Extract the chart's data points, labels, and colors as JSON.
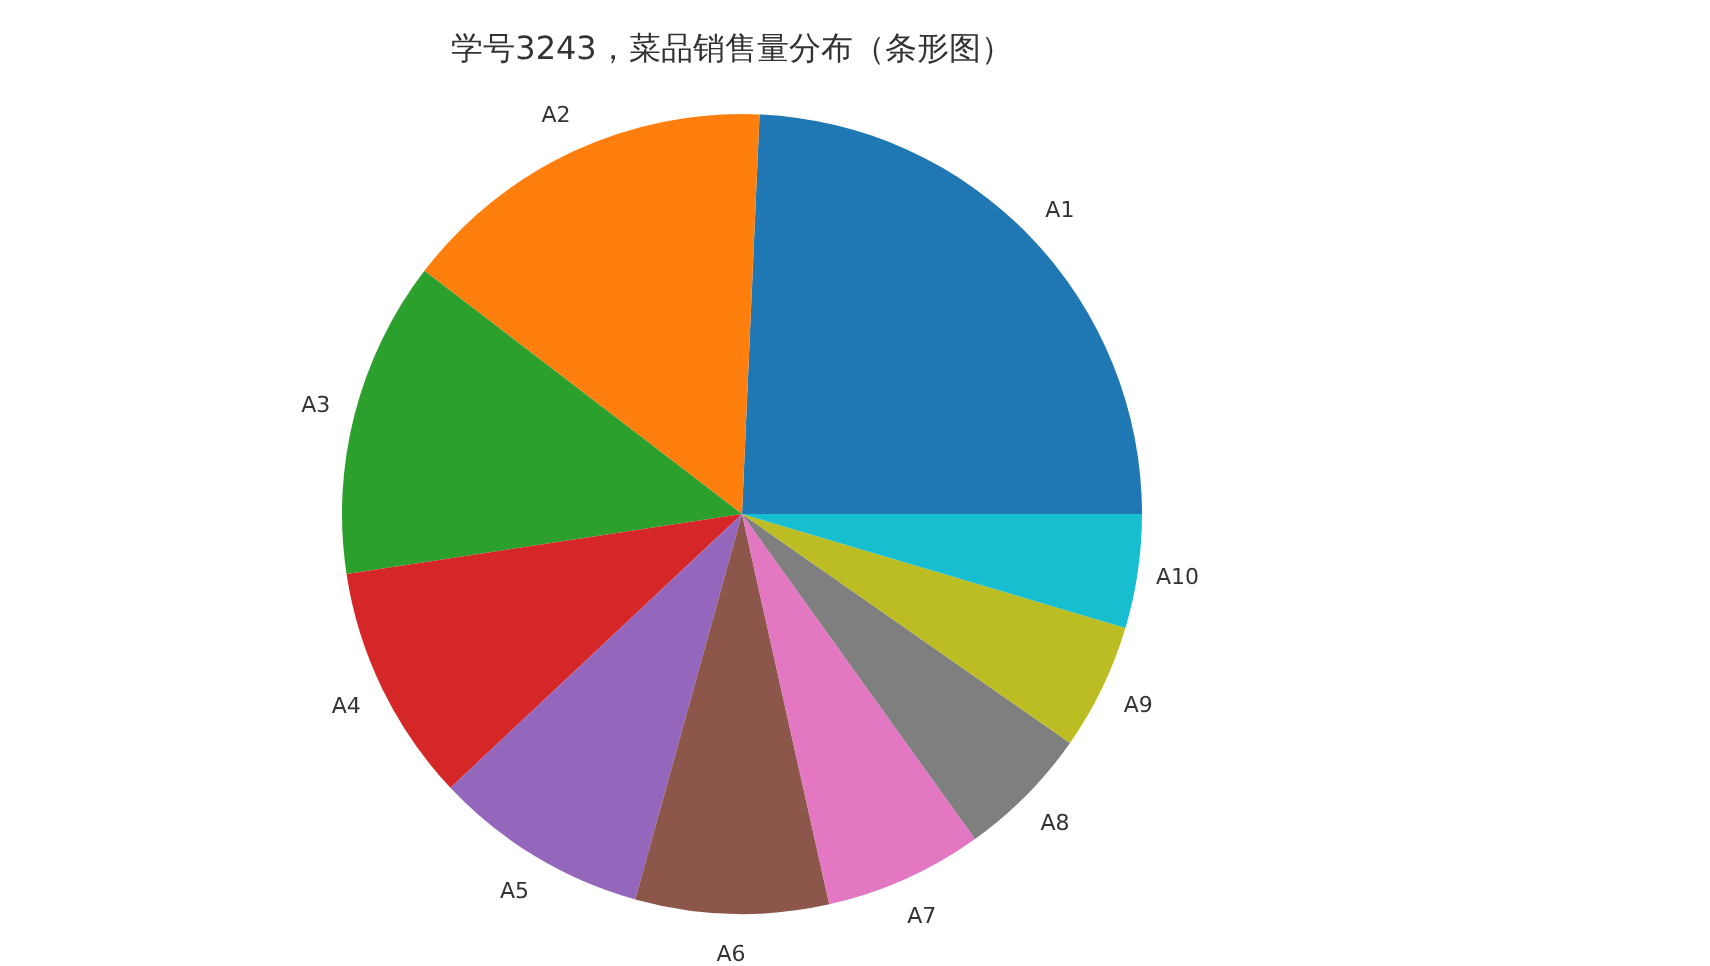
{
  "chart_data": {
    "type": "pie",
    "title": "学号3243，菜品销售量分布（条形图）",
    "categories": [
      "A1",
      "A2",
      "A3",
      "A4",
      "A5",
      "A6",
      "A7",
      "A8",
      "A9",
      "A10"
    ],
    "values": [
      24.3,
      15.3,
      12.8,
      9.6,
      8.7,
      7.8,
      6.4,
      5.4,
      5.1,
      4.6
    ],
    "colors": [
      "#1f77b4",
      "#ff7f0e",
      "#2ca02c",
      "#d62728",
      "#9467bd",
      "#8c564b",
      "#e377c2",
      "#7f7f7f",
      "#bcbd22",
      "#17becf"
    ]
  }
}
